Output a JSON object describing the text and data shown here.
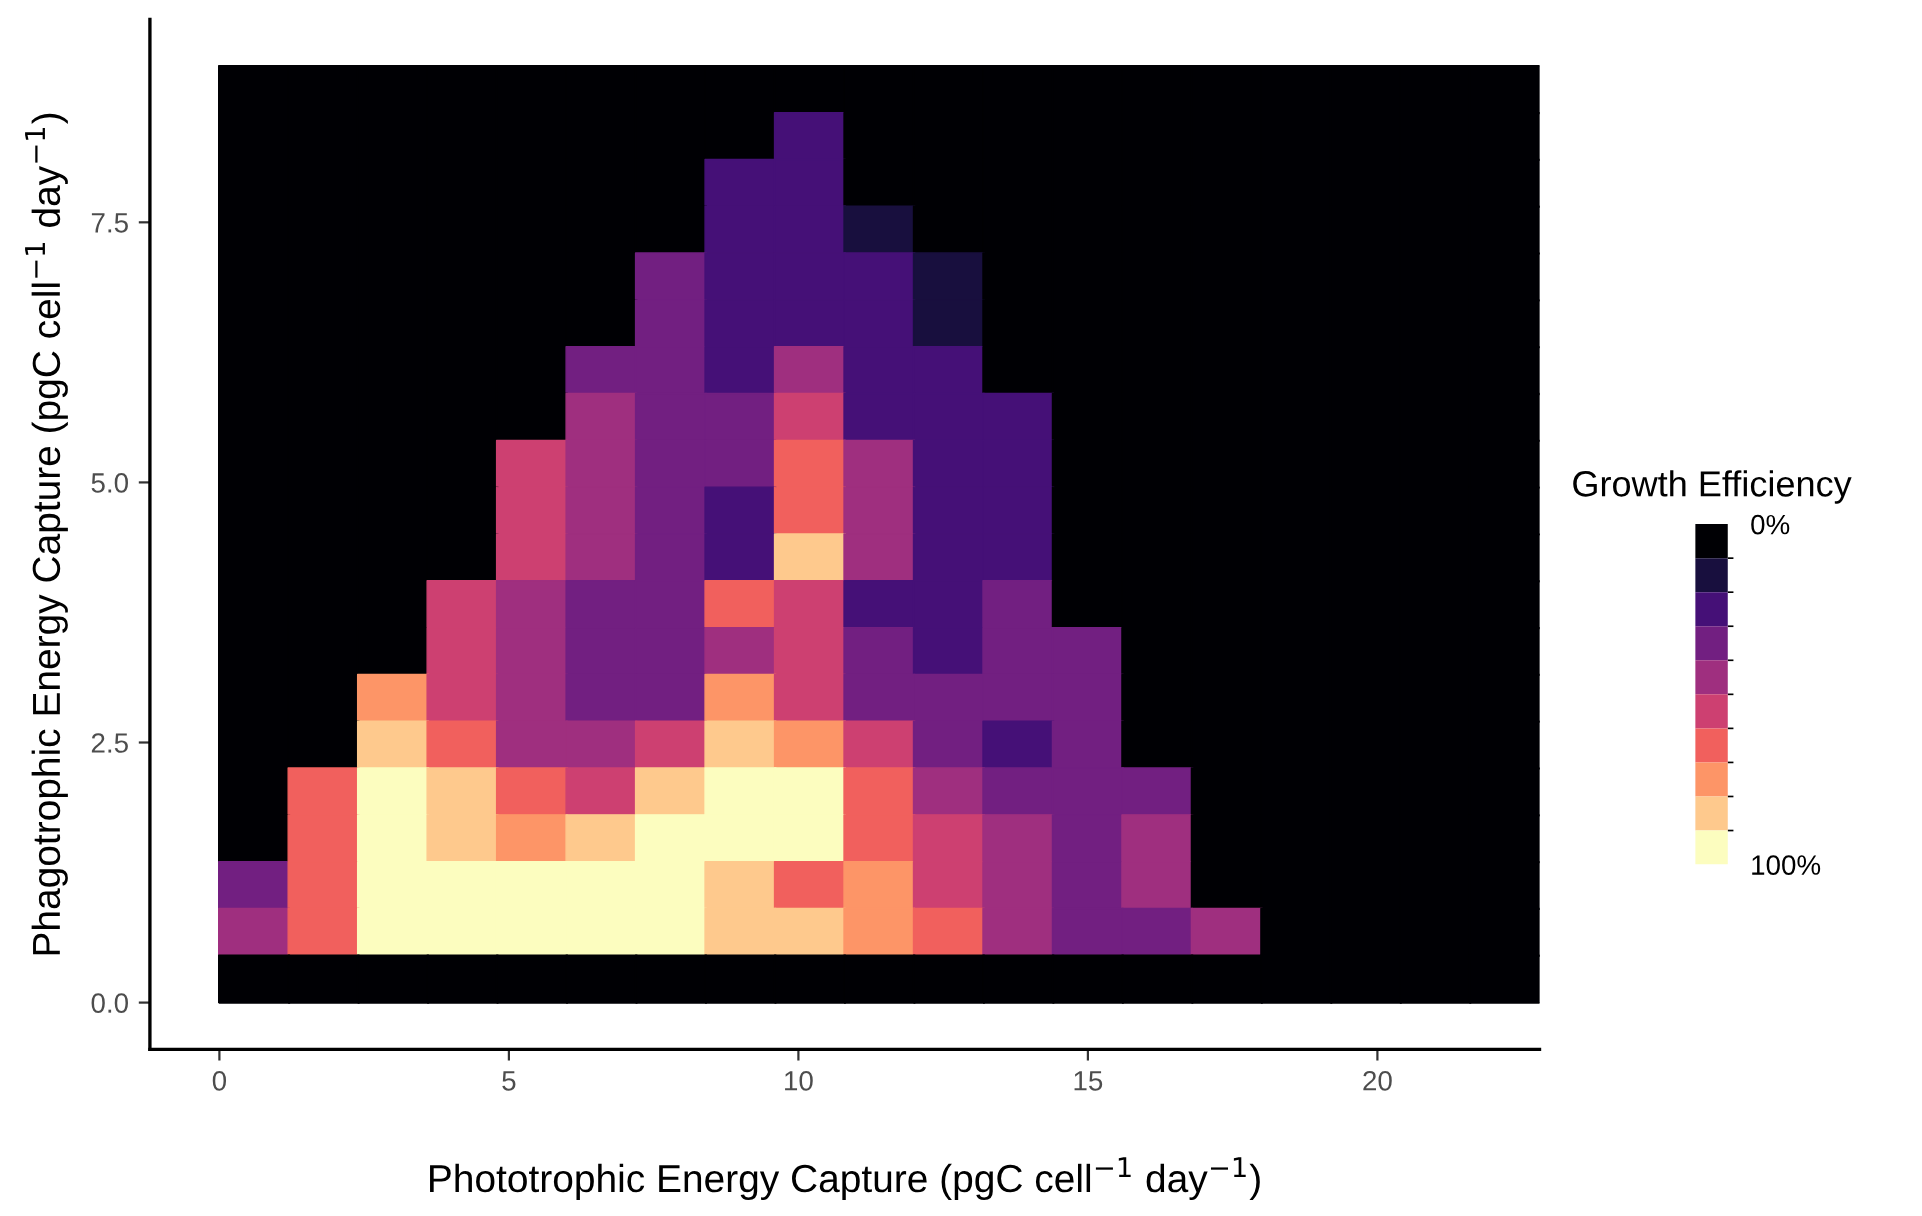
{
  "chart_data": {
    "type": "scatter",
    "xlabel": "Phototrophic Energy Capture (pgC cell$^{−1}$ day$^{−1}$)",
    "ylabel": "Phagotrophic Energy Capture (pgC cell$^{−1}$ day$^{−1}$)",
    "clabel": "Growth Efficiency",
    "xlim": [
      -1.2,
      22.8
    ],
    "xticks": [
      0,
      5,
      10,
      15,
      20
    ],
    "ylim": [
      -0.45,
      9.45
    ],
    "yticks": [
      {
        "value": 0,
        "label": "0.0"
      },
      2.5,
      {
        "value": 5,
        "label": "5.0"
      },
      7.5
    ],
    "clim": [
      0,
      100
    ],
    "cticks": [
      {
        "value": 0,
        "label": "0%"
      },
      {
        "value": 100,
        "label": "100%"
      }
    ],
    "colors": [
      "#000004",
      "#180f3e",
      "#451077",
      "#721f81",
      "#9f2f7f",
      "#cd4071",
      "#f1605d",
      "#fd9567",
      "#fec98d",
      "#fcfdbf"
    ],
    "marker": "square",
    "grid": false,
    "legend": false,
    "x": [
      0.6,
      1.8,
      3.0,
      4.2,
      5.4,
      6.6,
      7.8,
      9.0,
      10.2,
      11.4,
      12.6,
      13.8,
      15.0,
      16.2,
      17.4,
      18.6,
      19.8,
      21.0,
      22.2
    ],
    "series": [
      {
        "values": [
          8.775,
          8.775,
          8.775,
          8.775,
          8.775,
          8.775,
          8.775,
          8.775,
          8.775,
          8.775,
          8.775,
          8.775,
          8.775,
          8.775,
          8.775,
          8.775,
          8.775,
          8.775,
          8.775
        ],
        "cvalues": [
          5,
          5,
          5,
          5,
          5,
          5,
          5,
          5,
          5,
          5,
          5,
          5,
          5,
          5,
          5,
          5,
          5,
          5,
          5
        ],
        "colors": [
          "#000004",
          "#000004",
          "#000004",
          "#000004",
          "#000004",
          "#000004",
          "#000004",
          "#000004",
          "#000004",
          "#000004",
          "#000004",
          "#000004",
          "#000004",
          "#000004",
          "#000004",
          "#000004",
          "#000004",
          "#000004",
          "#000004"
        ]
      },
      {
        "values": [
          8.325,
          8.325,
          8.325,
          8.325,
          8.325,
          8.325,
          8.325,
          8.325,
          8.325,
          8.325,
          8.325,
          8.325,
          8.325,
          8.325,
          8.325,
          8.325,
          8.325,
          8.325,
          8.325
        ],
        "cvalues": [
          5,
          5,
          5,
          5,
          5,
          5,
          5,
          5,
          25,
          5,
          5,
          5,
          5,
          5,
          5,
          5,
          5,
          5,
          5
        ],
        "colors": [
          "#000004",
          "#000004",
          "#000004",
          "#000004",
          "#000004",
          "#000004",
          "#000004",
          "#000004",
          "#451077",
          "#000004",
          "#000004",
          "#000004",
          "#000004",
          "#000004",
          "#000004",
          "#000004",
          "#000004",
          "#000004",
          "#000004"
        ]
      },
      {
        "values": [
          7.875,
          7.875,
          7.875,
          7.875,
          7.875,
          7.875,
          7.875,
          7.875,
          7.875,
          7.875,
          7.875,
          7.875,
          7.875,
          7.875,
          7.875,
          7.875,
          7.875,
          7.875,
          7.875
        ],
        "cvalues": [
          5,
          5,
          5,
          5,
          5,
          5,
          5,
          25,
          25,
          5,
          5,
          5,
          5,
          5,
          5,
          5,
          5,
          5,
          5
        ],
        "colors": [
          "#000004",
          "#000004",
          "#000004",
          "#000004",
          "#000004",
          "#000004",
          "#000004",
          "#451077",
          "#451077",
          "#000004",
          "#000004",
          "#000004",
          "#000004",
          "#000004",
          "#000004",
          "#000004",
          "#000004",
          "#000004",
          "#000004"
        ]
      },
      {
        "values": [
          7.425,
          7.425,
          7.425,
          7.425,
          7.425,
          7.425,
          7.425,
          7.425,
          7.425,
          7.425,
          7.425,
          7.425,
          7.425,
          7.425,
          7.425,
          7.425,
          7.425,
          7.425,
          7.425
        ],
        "cvalues": [
          5,
          5,
          5,
          5,
          5,
          5,
          5,
          25,
          25,
          15,
          5,
          5,
          5,
          5,
          5,
          5,
          5,
          5,
          5
        ],
        "colors": [
          "#000004",
          "#000004",
          "#000004",
          "#000004",
          "#000004",
          "#000004",
          "#000004",
          "#451077",
          "#451077",
          "#180f3e",
          "#000004",
          "#000004",
          "#000004",
          "#000004",
          "#000004",
          "#000004",
          "#000004",
          "#000004",
          "#000004"
        ]
      },
      {
        "values": [
          6.975,
          6.975,
          6.975,
          6.975,
          6.975,
          6.975,
          6.975,
          6.975,
          6.975,
          6.975,
          6.975,
          6.975,
          6.975,
          6.975,
          6.975,
          6.975,
          6.975,
          6.975,
          6.975
        ],
        "cvalues": [
          5,
          5,
          5,
          5,
          5,
          5,
          35,
          25,
          25,
          25,
          15,
          5,
          5,
          5,
          5,
          5,
          5,
          5,
          5
        ],
        "colors": [
          "#000004",
          "#000004",
          "#000004",
          "#000004",
          "#000004",
          "#000004",
          "#721f81",
          "#451077",
          "#451077",
          "#451077",
          "#180f3e",
          "#000004",
          "#000004",
          "#000004",
          "#000004",
          "#000004",
          "#000004",
          "#000004",
          "#000004"
        ]
      },
      {
        "values": [
          6.525,
          6.525,
          6.525,
          6.525,
          6.525,
          6.525,
          6.525,
          6.525,
          6.525,
          6.525,
          6.525,
          6.525,
          6.525,
          6.525,
          6.525,
          6.525,
          6.525,
          6.525,
          6.525
        ],
        "cvalues": [
          5,
          5,
          5,
          5,
          5,
          5,
          35,
          25,
          25,
          25,
          15,
          5,
          5,
          5,
          5,
          5,
          5,
          5,
          5
        ],
        "colors": [
          "#000004",
          "#000004",
          "#000004",
          "#000004",
          "#000004",
          "#000004",
          "#721f81",
          "#451077",
          "#451077",
          "#451077",
          "#180f3e",
          "#000004",
          "#000004",
          "#000004",
          "#000004",
          "#000004",
          "#000004",
          "#000004",
          "#000004"
        ]
      },
      {
        "values": [
          6.075,
          6.075,
          6.075,
          6.075,
          6.075,
          6.075,
          6.075,
          6.075,
          6.075,
          6.075,
          6.075,
          6.075,
          6.075,
          6.075,
          6.075,
          6.075,
          6.075,
          6.075,
          6.075
        ],
        "cvalues": [
          5,
          5,
          5,
          5,
          5,
          35,
          35,
          25,
          45,
          25,
          25,
          5,
          5,
          5,
          5,
          5,
          5,
          5,
          5
        ],
        "colors": [
          "#000004",
          "#000004",
          "#000004",
          "#000004",
          "#000004",
          "#721f81",
          "#721f81",
          "#451077",
          "#9f2f7f",
          "#451077",
          "#451077",
          "#000004",
          "#000004",
          "#000004",
          "#000004",
          "#000004",
          "#000004",
          "#000004",
          "#000004"
        ]
      },
      {
        "values": [
          5.625,
          5.625,
          5.625,
          5.625,
          5.625,
          5.625,
          5.625,
          5.625,
          5.625,
          5.625,
          5.625,
          5.625,
          5.625,
          5.625,
          5.625,
          5.625,
          5.625,
          5.625,
          5.625
        ],
        "cvalues": [
          5,
          5,
          5,
          5,
          5,
          45,
          35,
          35,
          55,
          25,
          25,
          25,
          5,
          5,
          5,
          5,
          5,
          5,
          5
        ],
        "colors": [
          "#000004",
          "#000004",
          "#000004",
          "#000004",
          "#000004",
          "#9f2f7f",
          "#721f81",
          "#721f81",
          "#cd4071",
          "#451077",
          "#451077",
          "#451077",
          "#000004",
          "#000004",
          "#000004",
          "#000004",
          "#000004",
          "#000004",
          "#000004"
        ]
      },
      {
        "values": [
          5.175,
          5.175,
          5.175,
          5.175,
          5.175,
          5.175,
          5.175,
          5.175,
          5.175,
          5.175,
          5.175,
          5.175,
          5.175,
          5.175,
          5.175,
          5.175,
          5.175,
          5.175,
          5.175
        ],
        "cvalues": [
          5,
          5,
          5,
          5,
          55,
          45,
          35,
          35,
          65,
          45,
          25,
          25,
          5,
          5,
          5,
          5,
          5,
          5,
          5
        ],
        "colors": [
          "#000004",
          "#000004",
          "#000004",
          "#000004",
          "#cd4071",
          "#9f2f7f",
          "#721f81",
          "#721f81",
          "#f1605d",
          "#9f2f7f",
          "#451077",
          "#451077",
          "#000004",
          "#000004",
          "#000004",
          "#000004",
          "#000004",
          "#000004",
          "#000004"
        ]
      },
      {
        "values": [
          4.725,
          4.725,
          4.725,
          4.725,
          4.725,
          4.725,
          4.725,
          4.725,
          4.725,
          4.725,
          4.725,
          4.725,
          4.725,
          4.725,
          4.725,
          4.725,
          4.725,
          4.725,
          4.725
        ],
        "cvalues": [
          5,
          5,
          5,
          5,
          55,
          45,
          35,
          25,
          65,
          45,
          25,
          25,
          5,
          5,
          5,
          5,
          5,
          5,
          5
        ],
        "colors": [
          "#000004",
          "#000004",
          "#000004",
          "#000004",
          "#cd4071",
          "#9f2f7f",
          "#721f81",
          "#451077",
          "#f1605d",
          "#9f2f7f",
          "#451077",
          "#451077",
          "#000004",
          "#000004",
          "#000004",
          "#000004",
          "#000004",
          "#000004",
          "#000004"
        ]
      },
      {
        "values": [
          4.275,
          4.275,
          4.275,
          4.275,
          4.275,
          4.275,
          4.275,
          4.275,
          4.275,
          4.275,
          4.275,
          4.275,
          4.275,
          4.275,
          4.275,
          4.275,
          4.275,
          4.275,
          4.275
        ],
        "cvalues": [
          5,
          5,
          5,
          5,
          55,
          45,
          35,
          25,
          85,
          45,
          25,
          25,
          5,
          5,
          5,
          5,
          5,
          5,
          5
        ],
        "colors": [
          "#000004",
          "#000004",
          "#000004",
          "#000004",
          "#cd4071",
          "#9f2f7f",
          "#721f81",
          "#451077",
          "#fec98d",
          "#9f2f7f",
          "#451077",
          "#451077",
          "#000004",
          "#000004",
          "#000004",
          "#000004",
          "#000004",
          "#000004",
          "#000004"
        ]
      },
      {
        "values": [
          3.825,
          3.825,
          3.825,
          3.825,
          3.825,
          3.825,
          3.825,
          3.825,
          3.825,
          3.825,
          3.825,
          3.825,
          3.825,
          3.825,
          3.825,
          3.825,
          3.825,
          3.825,
          3.825
        ],
        "cvalues": [
          5,
          5,
          5,
          55,
          45,
          35,
          35,
          65,
          55,
          25,
          25,
          35,
          5,
          5,
          5,
          5,
          5,
          5,
          5
        ],
        "colors": [
          "#000004",
          "#000004",
          "#000004",
          "#cd4071",
          "#9f2f7f",
          "#721f81",
          "#721f81",
          "#f1605d",
          "#cd4071",
          "#451077",
          "#451077",
          "#721f81",
          "#000004",
          "#000004",
          "#000004",
          "#000004",
          "#000004",
          "#000004",
          "#000004"
        ]
      },
      {
        "values": [
          3.375,
          3.375,
          3.375,
          3.375,
          3.375,
          3.375,
          3.375,
          3.375,
          3.375,
          3.375,
          3.375,
          3.375,
          3.375,
          3.375,
          3.375,
          3.375,
          3.375,
          3.375,
          3.375
        ],
        "cvalues": [
          5,
          5,
          5,
          55,
          45,
          35,
          35,
          45,
          55,
          35,
          25,
          35,
          35,
          5,
          5,
          5,
          5,
          5,
          5
        ],
        "colors": [
          "#000004",
          "#000004",
          "#000004",
          "#cd4071",
          "#9f2f7f",
          "#721f81",
          "#721f81",
          "#9f2f7f",
          "#cd4071",
          "#721f81",
          "#451077",
          "#721f81",
          "#721f81",
          "#000004",
          "#000004",
          "#000004",
          "#000004",
          "#000004",
          "#000004"
        ]
      },
      {
        "values": [
          2.925,
          2.925,
          2.925,
          2.925,
          2.925,
          2.925,
          2.925,
          2.925,
          2.925,
          2.925,
          2.925,
          2.925,
          2.925,
          2.925,
          2.925,
          2.925,
          2.925,
          2.925,
          2.925
        ],
        "cvalues": [
          5,
          5,
          75,
          55,
          45,
          35,
          35,
          75,
          55,
          35,
          35,
          35,
          35,
          5,
          5,
          5,
          5,
          5,
          5
        ],
        "colors": [
          "#000004",
          "#000004",
          "#fd9567",
          "#cd4071",
          "#9f2f7f",
          "#721f81",
          "#721f81",
          "#fd9567",
          "#cd4071",
          "#721f81",
          "#721f81",
          "#721f81",
          "#721f81",
          "#000004",
          "#000004",
          "#000004",
          "#000004",
          "#000004",
          "#000004"
        ]
      },
      {
        "values": [
          2.475,
          2.475,
          2.475,
          2.475,
          2.475,
          2.475,
          2.475,
          2.475,
          2.475,
          2.475,
          2.475,
          2.475,
          2.475,
          2.475,
          2.475,
          2.475,
          2.475,
          2.475,
          2.475
        ],
        "cvalues": [
          5,
          5,
          85,
          65,
          45,
          45,
          55,
          85,
          75,
          55,
          35,
          25,
          35,
          5,
          5,
          5,
          5,
          5,
          5
        ],
        "colors": [
          "#000004",
          "#000004",
          "#fec98d",
          "#f1605d",
          "#9f2f7f",
          "#9f2f7f",
          "#cd4071",
          "#fec98d",
          "#fd9567",
          "#cd4071",
          "#721f81",
          "#451077",
          "#721f81",
          "#000004",
          "#000004",
          "#000004",
          "#000004",
          "#000004",
          "#000004"
        ]
      },
      {
        "values": [
          2.025,
          2.025,
          2.025,
          2.025,
          2.025,
          2.025,
          2.025,
          2.025,
          2.025,
          2.025,
          2.025,
          2.025,
          2.025,
          2.025,
          2.025,
          2.025,
          2.025,
          2.025,
          2.025
        ],
        "cvalues": [
          5,
          65,
          95,
          85,
          65,
          55,
          85,
          95,
          95,
          65,
          45,
          35,
          35,
          35,
          5,
          5,
          5,
          5,
          5
        ],
        "colors": [
          "#000004",
          "#f1605d",
          "#fcfdbf",
          "#fec98d",
          "#f1605d",
          "#cd4071",
          "#fec98d",
          "#fcfdbf",
          "#fcfdbf",
          "#f1605d",
          "#9f2f7f",
          "#721f81",
          "#721f81",
          "#721f81",
          "#000004",
          "#000004",
          "#000004",
          "#000004",
          "#000004"
        ]
      },
      {
        "values": [
          1.575,
          1.575,
          1.575,
          1.575,
          1.575,
          1.575,
          1.575,
          1.575,
          1.575,
          1.575,
          1.575,
          1.575,
          1.575,
          1.575,
          1.575,
          1.575,
          1.575,
          1.575,
          1.575
        ],
        "cvalues": [
          5,
          65,
          95,
          85,
          75,
          85,
          95,
          95,
          95,
          65,
          55,
          45,
          35,
          45,
          5,
          5,
          5,
          5,
          5
        ],
        "colors": [
          "#000004",
          "#f1605d",
          "#fcfdbf",
          "#fec98d",
          "#fd9567",
          "#fec98d",
          "#fcfdbf",
          "#fcfdbf",
          "#fcfdbf",
          "#f1605d",
          "#cd4071",
          "#9f2f7f",
          "#721f81",
          "#9f2f7f",
          "#000004",
          "#000004",
          "#000004",
          "#000004",
          "#000004"
        ]
      },
      {
        "values": [
          1.125,
          1.125,
          1.125,
          1.125,
          1.125,
          1.125,
          1.125,
          1.125,
          1.125,
          1.125,
          1.125,
          1.125,
          1.125,
          1.125,
          1.125,
          1.125,
          1.125,
          1.125,
          1.125
        ],
        "cvalues": [
          35,
          65,
          95,
          95,
          95,
          95,
          95,
          85,
          65,
          75,
          55,
          45,
          35,
          45,
          5,
          5,
          5,
          5,
          5
        ],
        "colors": [
          "#721f81",
          "#f1605d",
          "#fcfdbf",
          "#fcfdbf",
          "#fcfdbf",
          "#fcfdbf",
          "#fcfdbf",
          "#fec98d",
          "#f1605d",
          "#fd9567",
          "#cd4071",
          "#9f2f7f",
          "#721f81",
          "#9f2f7f",
          "#000004",
          "#000004",
          "#000004",
          "#000004",
          "#000004"
        ]
      },
      {
        "values": [
          0.675,
          0.675,
          0.675,
          0.675,
          0.675,
          0.675,
          0.675,
          0.675,
          0.675,
          0.675,
          0.675,
          0.675,
          0.675,
          0.675,
          0.675,
          0.675,
          0.675,
          0.675,
          0.675
        ],
        "cvalues": [
          45,
          65,
          95,
          95,
          95,
          95,
          95,
          85,
          85,
          75,
          65,
          45,
          35,
          35,
          45,
          5,
          5,
          5,
          5
        ],
        "colors": [
          "#9f2f7f",
          "#f1605d",
          "#fcfdbf",
          "#fcfdbf",
          "#fcfdbf",
          "#fcfdbf",
          "#fcfdbf",
          "#fec98d",
          "#fec98d",
          "#fd9567",
          "#f1605d",
          "#9f2f7f",
          "#721f81",
          "#721f81",
          "#9f2f7f",
          "#000004",
          "#000004",
          "#000004",
          "#000004"
        ]
      },
      {
        "values": [
          0.225,
          0.225,
          0.225,
          0.225,
          0.225,
          0.225,
          0.225,
          0.225,
          0.225,
          0.225,
          0.225,
          0.225,
          0.225,
          0.225,
          0.225,
          0.225,
          0.225,
          0.225,
          0.225
        ],
        "cvalues": [
          5,
          5,
          5,
          5,
          5,
          5,
          5,
          5,
          5,
          5,
          5,
          5,
          5,
          5,
          5,
          5,
          5,
          5,
          5
        ],
        "colors": [
          "#000004",
          "#000004",
          "#000004",
          "#000004",
          "#000004",
          "#000004",
          "#000004",
          "#000004",
          "#000004",
          "#000004",
          "#000004",
          "#000004",
          "#000004",
          "#000004",
          "#000004",
          "#000004",
          "#000004",
          "#000004",
          "#000004"
        ]
      }
    ]
  }
}
